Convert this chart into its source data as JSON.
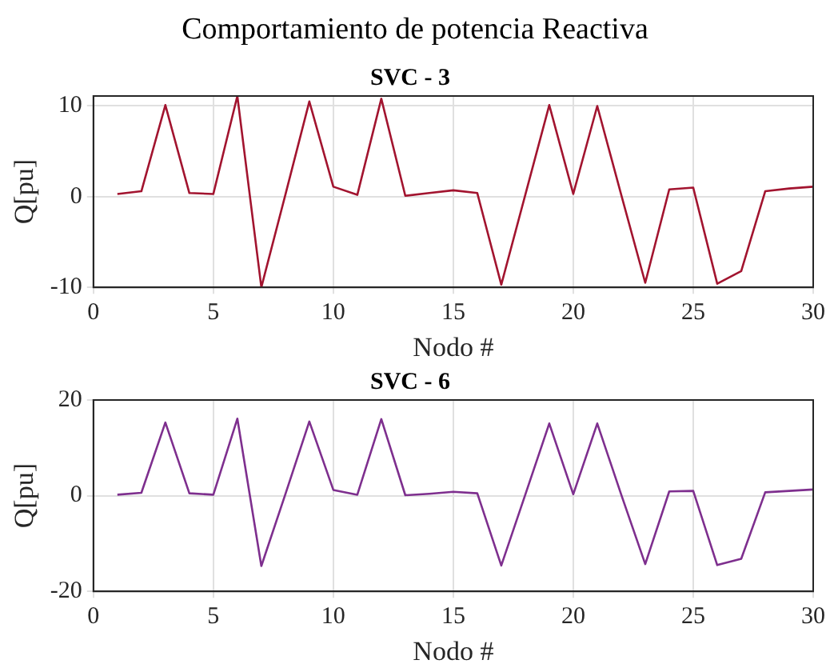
{
  "chart_data": [
    {
      "type": "line",
      "title": "SVC - 3",
      "annotations": [
        "Comportamiento de potencia Reactiva"
      ],
      "xlabel": "Nodo #",
      "ylabel": "Q[pu]",
      "x": [
        1,
        2,
        3,
        4,
        5,
        6,
        7,
        8,
        9,
        10,
        11,
        12,
        13,
        14,
        15,
        16,
        17,
        18,
        19,
        20,
        21,
        22,
        23,
        24,
        25,
        26,
        27,
        28,
        29,
        30
      ],
      "series": [
        {
          "color": "#a2142f",
          "values": [
            0.3,
            0.6,
            10.1,
            0.4,
            0.3,
            11.1,
            -10,
            0.2,
            10.5,
            1.1,
            0.2,
            10.8,
            0.1,
            0.4,
            0.7,
            0.4,
            -9.7,
            0.2,
            10.1,
            0.3,
            10,
            0.2,
            -9.5,
            0.8,
            1.0,
            -9.6,
            -8.2,
            0.6,
            0.9,
            1.1
          ]
        }
      ],
      "xlim": [
        0,
        30
      ],
      "xticks": [
        0,
        5,
        10,
        15,
        20,
        25,
        30
      ],
      "ylim": [
        -10,
        11.1
      ],
      "yticks": [
        -10,
        0,
        10
      ],
      "grid": true,
      "legend": false,
      "marker": "none",
      "line_style": "solid"
    },
    {
      "type": "line",
      "title": "SVC - 6",
      "xlabel": "Nodo #",
      "ylabel": "Q[pu]",
      "x": [
        1,
        2,
        3,
        4,
        5,
        6,
        7,
        8,
        9,
        10,
        11,
        12,
        13,
        14,
        15,
        16,
        17,
        18,
        19,
        20,
        21,
        22,
        23,
        24,
        25,
        26,
        27,
        28,
        29,
        30
      ],
      "series": [
        {
          "color": "#7e2f8e",
          "values": [
            0.2,
            0.6,
            15.3,
            0.5,
            0.2,
            16.1,
            -14.7,
            0.3,
            15.5,
            1.2,
            0.2,
            16,
            0.1,
            0.4,
            0.8,
            0.5,
            -14.6,
            0.2,
            15.1,
            0.3,
            15.1,
            0.2,
            -14.3,
            0.9,
            1.0,
            -14.5,
            -13.2,
            0.7,
            1.0,
            1.3
          ]
        }
      ],
      "xlim": [
        0,
        30
      ],
      "xticks": [
        0,
        5,
        10,
        15,
        20,
        25,
        30
      ],
      "ylim": [
        -20,
        20
      ],
      "yticks": [
        -20,
        0,
        20
      ],
      "grid": true,
      "legend": false,
      "marker": "none",
      "line_style": "solid"
    }
  ]
}
